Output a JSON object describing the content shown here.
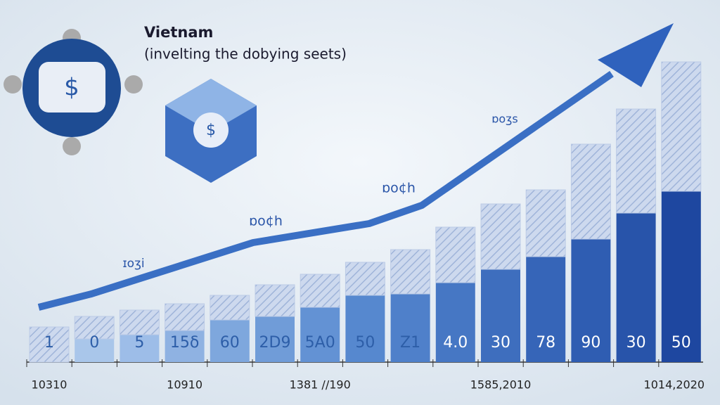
{
  "chart_data": {
    "type": "stacked-bar",
    "title": "Vietnam",
    "subtitle": "(invelting the dobying seets)",
    "categories": [
      "10310",
      null,
      null,
      "10910",
      null,
      null,
      "1381 //190",
      null,
      null,
      null,
      "1585,2010",
      null,
      null,
      null,
      "1014,2020"
    ],
    "series": [
      {
        "colors": [
          "#cfdcf0",
          "#a9c6ea",
          "#9dbde8",
          "#8fb2e2",
          "#7ea7dd",
          "#709cd8",
          "#6392d4",
          "#5688cf",
          "#4f80ca",
          "#4677c4",
          "#3e6ebe",
          "#3665b8",
          "#2f5db2",
          "#2854aa",
          "#1e47a0"
        ],
        "values": [
          0,
          33,
          39,
          45,
          60,
          65,
          78,
          95,
          97,
          113,
          132,
          150,
          175,
          212,
          243
        ]
      },
      {
        "color": "#bccbe6",
        "values": [
          50,
          32,
          35,
          38,
          35,
          45,
          47,
          47,
          63,
          79,
          93,
          95,
          135,
          148,
          184
        ]
      }
    ],
    "bar_labels": [
      "1",
      "0",
      "5",
      "15δ",
      "60",
      "2D9",
      "5A0",
      "50",
      "Z1",
      "4.0",
      "30",
      "78",
      "90",
      "30",
      "50"
    ],
    "annotations": [
      "ɪoʒi",
      "ɒo¢h",
      "ɒo¢h",
      "ɒoʒs"
    ],
    "ylim": [
      0,
      430
    ]
  }
}
